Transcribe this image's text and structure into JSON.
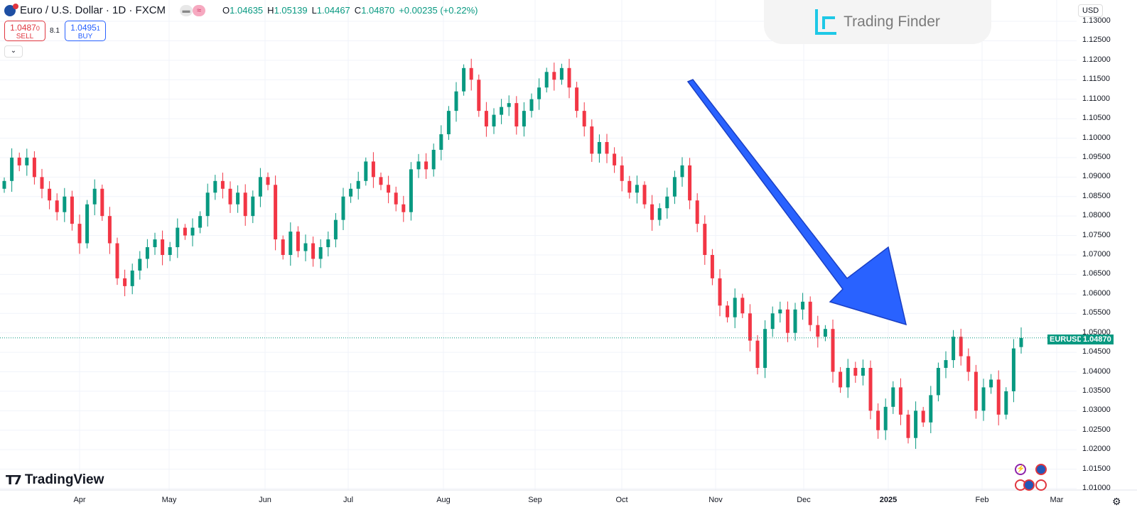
{
  "header": {
    "title": "Euro / U.S. Dollar · 1D · FXCM",
    "ohlc": [
      {
        "k": "O",
        "v": "1.04635"
      },
      {
        "k": "H",
        "v": "1.05139"
      },
      {
        "k": "L",
        "v": "1.04467"
      },
      {
        "k": "C",
        "v": "1.04870"
      }
    ],
    "change": "+0.00235 (+0.22%)"
  },
  "trade": {
    "sell_price": "1.0487",
    "sell_sup": "0",
    "sell_label": "SELL",
    "spread": "8.1",
    "buy_price": "1.0495",
    "buy_sup": "1",
    "buy_label": "BUY"
  },
  "watermark": "Trading Finder",
  "currency": "USD",
  "branding": "TradingView",
  "price_tag": {
    "symbol": "EURUSD",
    "price": "1.04870"
  },
  "colors": {
    "up": "#089981",
    "down": "#f23645",
    "arrow": "#2962ff"
  },
  "chart_data": {
    "type": "candlestick",
    "ylim": [
      1.01,
      1.13
    ],
    "yticks": [
      "1.13000",
      "1.12500",
      "1.12000",
      "1.11500",
      "1.11000",
      "1.10500",
      "1.10000",
      "1.09500",
      "1.09000",
      "1.08500",
      "1.08000",
      "1.07500",
      "1.07000",
      "1.06500",
      "1.06000",
      "1.05500",
      "1.05000",
      "1.04500",
      "1.04000",
      "1.03500",
      "1.03000",
      "1.02500",
      "1.02000",
      "1.01500",
      "1.01000"
    ],
    "xticks": [
      {
        "label": "Apr"
      },
      {
        "label": "May"
      },
      {
        "label": "Jun"
      },
      {
        "label": "Jul"
      },
      {
        "label": "Aug"
      },
      {
        "label": "Sep"
      },
      {
        "label": "Oct"
      },
      {
        "label": "Nov"
      },
      {
        "label": "Dec"
      },
      {
        "label": "2025",
        "bold": true
      },
      {
        "label": "Feb"
      },
      {
        "label": "Mar"
      }
    ],
    "closes": [
      1.089,
      1.095,
      1.093,
      1.095,
      1.09,
      1.087,
      1.084,
      1.081,
      1.085,
      1.078,
      1.073,
      1.083,
      1.087,
      1.08,
      1.073,
      1.064,
      1.062,
      1.066,
      1.069,
      1.072,
      1.074,
      1.07,
      1.072,
      1.077,
      1.075,
      1.077,
      1.08,
      1.086,
      1.089,
      1.087,
      1.083,
      1.086,
      1.08,
      1.085,
      1.09,
      1.088,
      1.074,
      1.07,
      1.076,
      1.071,
      1.073,
      1.069,
      1.072,
      1.074,
      1.079,
      1.085,
      1.087,
      1.089,
      1.094,
      1.09,
      1.088,
      1.086,
      1.083,
      1.081,
      1.092,
      1.094,
      1.092,
      1.097,
      1.101,
      1.107,
      1.112,
      1.118,
      1.115,
      1.107,
      1.103,
      1.106,
      1.108,
      1.109,
      1.103,
      1.107,
      1.11,
      1.113,
      1.117,
      1.115,
      1.118,
      1.113,
      1.107,
      1.103,
      1.096,
      1.099,
      1.096,
      1.093,
      1.089,
      1.086,
      1.088,
      1.083,
      1.079,
      1.082,
      1.085,
      1.09,
      1.093,
      1.084,
      1.078,
      1.07,
      1.064,
      1.057,
      1.054,
      1.059,
      1.055,
      1.048,
      1.041,
      1.051,
      1.055,
      1.056,
      1.05,
      1.056,
      1.058,
      1.052,
      1.049,
      1.051,
      1.04,
      1.036,
      1.041,
      1.039,
      1.041,
      1.03,
      1.025,
      1.031,
      1.036,
      1.029,
      1.023,
      1.03,
      1.027,
      1.034,
      1.041,
      1.043,
      1.049,
      1.044,
      1.04,
      1.03,
      1.036,
      1.038,
      1.029,
      1.035,
      1.046,
      1.0487
    ],
    "last": {
      "open": 1.04635,
      "high": 1.05139,
      "low": 1.04467,
      "close": 1.0487
    }
  }
}
